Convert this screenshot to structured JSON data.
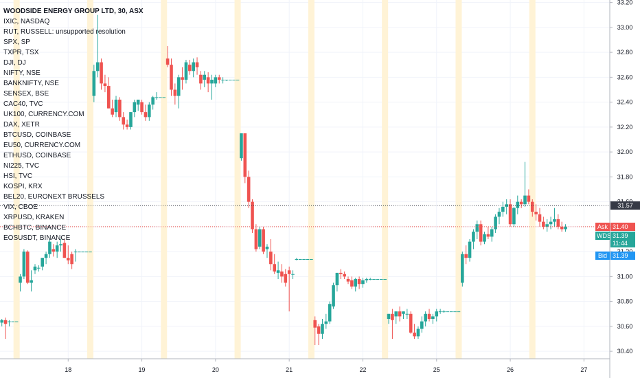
{
  "chart_data": {
    "type": "candlestick",
    "symbol": "WOODSIDE ENERGY GROUP LTD, 30, ASX",
    "ylim": [
      30.34,
      33.22
    ],
    "y_ticks": [
      "33.20",
      "33.00",
      "32.80",
      "32.60",
      "32.40",
      "32.20",
      "32.00",
      "31.80",
      "31.60",
      "31.40",
      "31.20",
      "31.00",
      "30.80",
      "30.60",
      "30.40"
    ],
    "x_ticks": [
      {
        "label": "18",
        "slot": 18
      },
      {
        "label": "19",
        "slot": 38
      },
      {
        "label": "20",
        "slot": 58
      },
      {
        "label": "21",
        "slot": 78
      },
      {
        "label": "22",
        "slot": 98
      },
      {
        "label": "25",
        "slot": 118
      },
      {
        "label": "26",
        "slot": 138
      },
      {
        "label": "27",
        "slot": 158
      }
    ],
    "session_highlight_slots": [
      4,
      24,
      44,
      64,
      84,
      104,
      124,
      144
    ],
    "candles": [
      [
        30.63,
        30.66,
        30.6,
        30.65
      ],
      [
        30.65,
        30.67,
        30.5,
        30.62
      ],
      [
        30.64,
        30.65,
        30.6,
        30.64
      ],
      [
        30.64,
        30.64,
        30.64,
        30.64
      ],
      [
        30.64,
        30.64,
        30.64,
        30.64
      ],
      [
        30.95,
        31.02,
        30.88,
        31.0
      ],
      [
        31.0,
        31.22,
        30.98,
        31.2
      ],
      [
        31.2,
        31.21,
        30.94,
        30.95
      ],
      [
        30.95,
        31.05,
        30.88,
        30.97
      ],
      [
        31.05,
        31.1,
        31.02,
        31.08
      ],
      [
        31.07,
        31.09,
        31.04,
        31.07
      ],
      [
        31.08,
        31.15,
        31.05,
        31.15
      ],
      [
        31.15,
        31.2,
        31.1,
        31.18
      ],
      [
        31.18,
        31.3,
        31.15,
        31.28
      ],
      [
        31.22,
        31.26,
        31.16,
        31.2
      ],
      [
        31.2,
        31.28,
        31.15,
        31.25
      ],
      [
        31.25,
        31.3,
        31.2,
        31.26
      ],
      [
        31.27,
        31.3,
        31.15,
        31.15
      ],
      [
        31.15,
        31.25,
        31.1,
        31.13
      ],
      [
        31.18,
        31.2,
        31.06,
        31.1
      ],
      [
        31.2,
        31.22,
        31.12,
        31.2
      ],
      [
        31.2,
        31.2,
        31.2,
        31.2
      ],
      [
        31.2,
        31.2,
        31.2,
        31.2
      ],
      [
        31.2,
        31.2,
        31.2,
        31.2
      ],
      [
        31.2,
        31.2,
        31.2,
        31.2
      ],
      [
        32.45,
        32.7,
        32.4,
        32.65
      ],
      [
        32.65,
        33.1,
        32.6,
        32.72
      ],
      [
        32.72,
        32.75,
        32.5,
        32.55
      ],
      [
        32.55,
        32.62,
        32.48,
        32.53
      ],
      [
        32.53,
        32.6,
        32.35,
        32.35
      ],
      [
        32.35,
        32.42,
        32.28,
        32.3
      ],
      [
        32.32,
        32.45,
        32.28,
        32.42
      ],
      [
        32.42,
        32.44,
        32.25,
        32.28
      ],
      [
        32.28,
        32.32,
        32.18,
        32.22
      ],
      [
        32.22,
        32.26,
        32.18,
        32.2
      ],
      [
        32.2,
        32.32,
        32.18,
        32.32
      ],
      [
        32.32,
        32.42,
        32.28,
        32.4
      ],
      [
        32.38,
        32.42,
        32.33,
        32.42
      ],
      [
        32.4,
        32.42,
        32.3,
        32.32
      ],
      [
        32.32,
        32.38,
        32.25,
        32.28
      ],
      [
        32.28,
        32.4,
        32.25,
        32.38
      ],
      [
        32.38,
        32.45,
        32.34,
        32.44
      ],
      [
        32.44,
        32.48,
        32.42,
        32.44
      ],
      [
        32.44,
        32.44,
        32.44,
        32.44
      ],
      [
        32.44,
        32.44,
        32.44,
        32.44
      ],
      [
        32.75,
        32.85,
        32.68,
        32.7
      ],
      [
        32.7,
        32.75,
        32.45,
        32.5
      ],
      [
        32.5,
        32.55,
        32.38,
        32.45
      ],
      [
        32.45,
        32.62,
        32.35,
        32.6
      ],
      [
        32.6,
        32.68,
        32.5,
        32.58
      ],
      [
        32.58,
        32.74,
        32.55,
        32.72
      ],
      [
        32.7,
        32.74,
        32.62,
        32.65
      ],
      [
        32.65,
        32.75,
        32.6,
        32.72
      ],
      [
        32.72,
        32.76,
        32.62,
        32.68
      ],
      [
        32.62,
        32.65,
        32.5,
        32.55
      ],
      [
        32.58,
        32.65,
        32.52,
        32.62
      ],
      [
        32.6,
        32.64,
        32.48,
        32.55
      ],
      [
        32.55,
        32.62,
        32.42,
        32.58
      ],
      [
        32.55,
        32.62,
        32.52,
        32.6
      ],
      [
        32.6,
        32.62,
        32.55,
        32.58
      ],
      [
        32.58,
        32.6,
        32.55,
        32.58
      ],
      [
        32.58,
        32.58,
        32.57,
        32.58
      ],
      [
        32.58,
        32.58,
        32.58,
        32.58
      ],
      [
        32.58,
        32.58,
        32.58,
        32.58
      ],
      [
        32.58,
        32.58,
        32.58,
        32.58
      ],
      [
        31.95,
        32.15,
        31.93,
        32.15
      ],
      [
        32.15,
        32.15,
        31.75,
        31.8
      ],
      [
        31.8,
        31.85,
        31.55,
        31.6
      ],
      [
        31.6,
        31.62,
        31.35,
        31.38
      ],
      [
        31.38,
        31.42,
        31.2,
        31.22
      ],
      [
        31.24,
        31.4,
        31.22,
        31.38
      ],
      [
        31.38,
        31.4,
        31.18,
        31.2
      ],
      [
        31.22,
        31.26,
        31.15,
        31.24
      ],
      [
        31.2,
        31.3,
        31.05,
        31.1
      ],
      [
        31.1,
        31.18,
        31.02,
        31.04
      ],
      [
        31.03,
        31.12,
        30.98,
        31.05
      ],
      [
        31.04,
        31.1,
        30.95,
        31.0
      ],
      [
        31.02,
        31.06,
        30.92,
        30.95
      ],
      [
        31.05,
        31.08,
        30.72,
        31.02
      ],
      [
        31.02,
        31.05,
        30.98,
        31.02
      ],
      [
        31.14,
        31.15,
        31.13,
        31.14
      ],
      [
        31.14,
        31.14,
        31.14,
        31.14
      ],
      [
        31.14,
        31.14,
        31.14,
        31.14
      ],
      [
        31.14,
        31.14,
        31.14,
        31.14
      ],
      [
        31.14,
        31.14,
        31.14,
        31.14
      ],
      [
        30.65,
        30.68,
        30.45,
        30.59
      ],
      [
        30.6,
        30.62,
        30.45,
        30.54
      ],
      [
        30.54,
        30.66,
        30.5,
        30.62
      ],
      [
        30.62,
        30.7,
        30.58,
        30.64
      ],
      [
        30.64,
        30.8,
        30.62,
        30.78
      ],
      [
        30.76,
        30.95,
        30.74,
        30.93
      ],
      [
        30.93,
        31.03,
        30.88,
        31.03
      ],
      [
        31.03,
        31.06,
        30.98,
        31.02
      ],
      [
        31.02,
        31.04,
        30.98,
        31.0
      ],
      [
        30.98,
        31.0,
        30.94,
        30.96
      ],
      [
        30.97,
        31.0,
        30.9,
        30.92
      ],
      [
        30.92,
        30.99,
        30.88,
        30.98
      ],
      [
        30.98,
        31.0,
        30.9,
        30.94
      ],
      [
        30.94,
        30.99,
        30.91,
        30.97
      ],
      [
        30.97,
        30.99,
        30.95,
        30.98
      ],
      [
        30.98,
        30.99,
        30.97,
        30.98
      ],
      [
        30.98,
        30.98,
        30.98,
        30.98
      ],
      [
        30.98,
        30.98,
        30.98,
        30.98
      ],
      [
        30.98,
        30.98,
        30.98,
        30.98
      ],
      [
        30.98,
        30.98,
        30.98,
        30.98
      ],
      [
        30.66,
        30.7,
        30.62,
        30.7
      ],
      [
        30.7,
        30.74,
        30.5,
        30.65
      ],
      [
        30.68,
        30.72,
        30.62,
        30.72
      ],
      [
        30.72,
        30.76,
        30.64,
        30.68
      ],
      [
        30.7,
        30.72,
        30.66,
        30.72
      ],
      [
        30.7,
        30.74,
        30.66,
        30.7
      ],
      [
        30.7,
        30.72,
        30.54,
        30.55
      ],
      [
        30.55,
        30.62,
        30.5,
        30.52
      ],
      [
        30.52,
        30.6,
        30.5,
        30.58
      ],
      [
        30.58,
        30.68,
        30.55,
        30.64
      ],
      [
        30.64,
        30.72,
        30.6,
        30.7
      ],
      [
        30.7,
        30.74,
        30.64,
        30.66
      ],
      [
        30.66,
        30.7,
        30.62,
        30.68
      ],
      [
        30.68,
        30.74,
        30.64,
        30.72
      ],
      [
        30.72,
        30.74,
        30.7,
        30.72
      ],
      [
        30.72,
        30.73,
        30.71,
        30.72
      ],
      [
        30.72,
        30.72,
        30.72,
        30.72
      ],
      [
        30.72,
        30.72,
        30.72,
        30.72
      ],
      [
        30.72,
        30.72,
        30.72,
        30.72
      ],
      [
        30.72,
        30.72,
        30.72,
        30.72
      ],
      [
        30.95,
        31.2,
        30.92,
        31.18
      ],
      [
        31.18,
        31.25,
        31.1,
        31.15
      ],
      [
        31.15,
        31.3,
        31.12,
        31.28
      ],
      [
        31.28,
        31.38,
        31.22,
        31.36
      ],
      [
        31.36,
        31.45,
        31.3,
        31.42
      ],
      [
        31.42,
        31.45,
        31.25,
        31.28
      ],
      [
        31.28,
        31.36,
        31.26,
        31.34
      ],
      [
        31.34,
        31.4,
        31.3,
        31.32
      ],
      [
        31.32,
        31.4,
        31.28,
        31.38
      ],
      [
        31.38,
        31.5,
        31.35,
        31.48
      ],
      [
        31.48,
        31.55,
        31.42,
        31.52
      ],
      [
        31.52,
        31.6,
        31.48,
        31.56
      ],
      [
        31.56,
        31.62,
        31.5,
        31.58
      ],
      [
        31.58,
        31.62,
        31.4,
        31.42
      ],
      [
        31.42,
        31.56,
        31.4,
        31.55
      ],
      [
        31.55,
        31.65,
        31.5,
        31.6
      ],
      [
        31.6,
        31.62,
        31.55,
        31.58
      ],
      [
        31.58,
        31.92,
        31.56,
        31.65
      ],
      [
        31.65,
        31.7,
        31.58,
        31.6
      ],
      [
        31.6,
        31.62,
        31.48,
        31.52
      ],
      [
        31.52,
        31.58,
        31.45,
        31.5
      ],
      [
        31.5,
        31.55,
        31.4,
        31.44
      ],
      [
        31.44,
        31.48,
        31.38,
        31.4
      ],
      [
        31.4,
        31.46,
        31.36,
        31.42
      ],
      [
        31.42,
        31.48,
        31.38,
        31.44
      ],
      [
        31.44,
        31.55,
        31.4,
        31.46
      ],
      [
        31.46,
        31.5,
        31.38,
        31.4
      ],
      [
        31.4,
        31.44,
        31.36,
        31.38
      ],
      [
        31.38,
        31.42,
        31.36,
        31.4
      ]
    ],
    "current_value_line": "31.57",
    "price_labels": [
      {
        "label": "31.57",
        "price": 31.57,
        "color": "#363a45"
      },
      {
        "label": "Ask",
        "value": "31.40",
        "price": 31.4,
        "color": "#ef5350"
      },
      {
        "label": "WDS",
        "value": "31.39",
        "price": 31.33,
        "color": "#26a69a"
      },
      {
        "label": "",
        "value": "11:44",
        "price": 31.265,
        "color": "#26a69a"
      },
      {
        "label": "Bid",
        "value": "31.39",
        "price": 31.17,
        "color": "#2196f3"
      }
    ],
    "colors": {
      "up": "#26a69a",
      "down": "#ef5350",
      "session": "#fff3d6",
      "grid": "#f0f3fa",
      "axis_text": "#131722"
    }
  },
  "legend": [
    "WOODSIDE ENERGY GROUP LTD, 30, ASX",
    "IXIC, NASDAQ",
    "RUT, RUSSELL: unsupported resolution",
    "SPX, SP",
    "TXPR, TSX",
    "DJI, DJ",
    "NIFTY, NSE",
    "BANKNIFTY, NSE",
    "SENSEX, BSE",
    "CAC40, TVC",
    "UK100, CURRENCY.COM",
    "DAX, XETR",
    "BTCUSD, COINBASE",
    "EU50, CURRENCY.COM",
    "ETHUSD, COINBASE",
    "NI225, TVC",
    "HSI, TVC",
    "KOSPI, KRX",
    "BEL20, EURONEXT BRUSSELS",
    "VIX, CBOE",
    "XRPUSD, KRAKEN",
    "BCHBTC, BINANCE",
    "EOSUSDT, BINANCE"
  ]
}
